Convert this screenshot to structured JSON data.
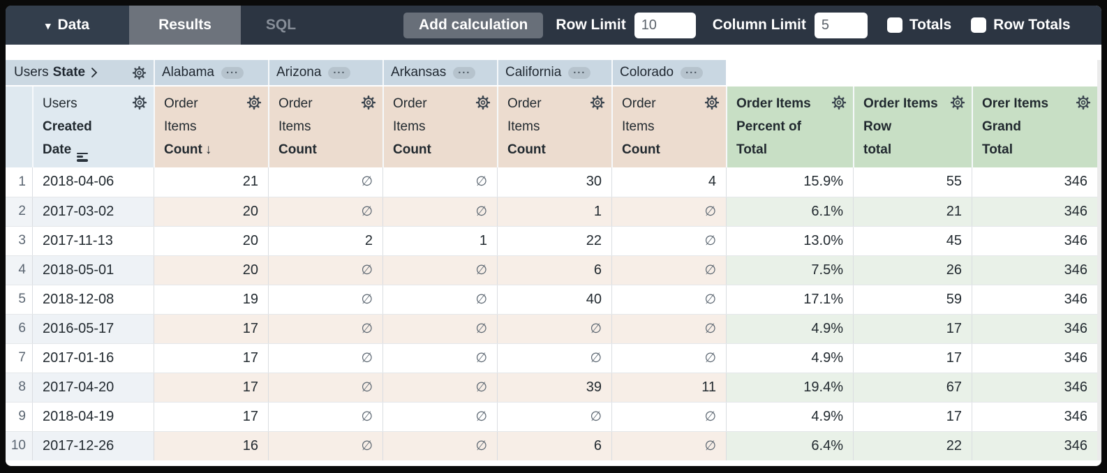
{
  "toolbar": {
    "data_label": "Data",
    "results_tab": "Results",
    "sql_tab": "SQL",
    "add_calculation_label": "Add calculation",
    "row_limit_label": "Row Limit",
    "row_limit_value": "10",
    "column_limit_label": "Column Limit",
    "column_limit_value": "5",
    "totals_label": "Totals",
    "row_totals_label": "Row Totals",
    "totals_checked": false,
    "row_totals_checked": false
  },
  "pivot": {
    "field_normal": "Users",
    "field_bold": "State",
    "states": [
      "Alabama",
      "Arizona",
      "Arkansas",
      "California",
      "Colorado"
    ]
  },
  "table": {
    "columns": [
      {
        "key": "users-created-date",
        "group": "dimension",
        "lines": [
          "Users",
          "Created",
          "Date"
        ],
        "bold_from": 1,
        "icon": "date-granularity-icon",
        "sorted": false
      },
      {
        "key": "alabama-order-items-count",
        "group": "measure",
        "lines": [
          "Order",
          "Items",
          "Count"
        ],
        "bold_from": 2,
        "icon": null,
        "sorted": true
      },
      {
        "key": "arizona-order-items-count",
        "group": "measure",
        "lines": [
          "Order",
          "Items",
          "Count"
        ],
        "bold_from": 2,
        "icon": null,
        "sorted": false
      },
      {
        "key": "arkansas-order-items-count",
        "group": "measure",
        "lines": [
          "Order",
          "Items",
          "Count"
        ],
        "bold_from": 2,
        "icon": null,
        "sorted": false
      },
      {
        "key": "california-order-items-count",
        "group": "measure",
        "lines": [
          "Order",
          "Items",
          "Count"
        ],
        "bold_from": 2,
        "icon": null,
        "sorted": false
      },
      {
        "key": "colorado-order-items-count",
        "group": "measure",
        "lines": [
          "Order",
          "Items",
          "Count"
        ],
        "bold_from": 2,
        "icon": null,
        "sorted": false
      },
      {
        "key": "order-items-percent-of-total",
        "group": "calc",
        "lines": [
          "Order Items",
          "Percent of",
          "Total"
        ],
        "bold_from": 0,
        "icon": null,
        "sorted": false
      },
      {
        "key": "order-items-row-total",
        "group": "calc",
        "lines": [
          "Order Items",
          "Row",
          "total"
        ],
        "bold_from": 0,
        "icon": null,
        "sorted": false
      },
      {
        "key": "orer-items-grand-total",
        "group": "calc",
        "lines": [
          "Orer Items",
          "Grand",
          "Total"
        ],
        "bold_from": 0,
        "icon": null,
        "sorted": false
      }
    ],
    "null_glyph": "∅",
    "sort_arrow_glyph": "↓",
    "rows": [
      {
        "num": "1",
        "cells": [
          "2018-04-06",
          "21",
          "∅",
          "∅",
          "30",
          "4",
          "15.9%",
          "55",
          "346"
        ]
      },
      {
        "num": "2",
        "cells": [
          "2017-03-02",
          "20",
          "∅",
          "∅",
          "1",
          "∅",
          "6.1%",
          "21",
          "346"
        ]
      },
      {
        "num": "3",
        "cells": [
          "2017-11-13",
          "20",
          "2",
          "1",
          "22",
          "∅",
          "13.0%",
          "45",
          "346"
        ]
      },
      {
        "num": "4",
        "cells": [
          "2018-05-01",
          "20",
          "∅",
          "∅",
          "6",
          "∅",
          "7.5%",
          "26",
          "346"
        ]
      },
      {
        "num": "5",
        "cells": [
          "2018-12-08",
          "19",
          "∅",
          "∅",
          "40",
          "∅",
          "17.1%",
          "59",
          "346"
        ]
      },
      {
        "num": "6",
        "cells": [
          "2016-05-17",
          "17",
          "∅",
          "∅",
          "∅",
          "∅",
          "4.9%",
          "17",
          "346"
        ]
      },
      {
        "num": "7",
        "cells": [
          "2017-01-16",
          "17",
          "∅",
          "∅",
          "∅",
          "∅",
          "4.9%",
          "17",
          "346"
        ]
      },
      {
        "num": "8",
        "cells": [
          "2017-04-20",
          "17",
          "∅",
          "∅",
          "39",
          "11",
          "19.4%",
          "67",
          "346"
        ]
      },
      {
        "num": "9",
        "cells": [
          "2018-04-19",
          "17",
          "∅",
          "∅",
          "∅",
          "∅",
          "4.9%",
          "17",
          "346"
        ]
      },
      {
        "num": "10",
        "cells": [
          "2017-12-26",
          "16",
          "∅",
          "∅",
          "6",
          "∅",
          "6.4%",
          "22",
          "346"
        ]
      }
    ]
  },
  "colors": {
    "topbar_bg": "#2c3542",
    "data_block_bg": "#333e4c",
    "active_tab_bg": "#6d737c",
    "button_bg": "#686f79",
    "pivot_header_bg": "#c9d7e2",
    "dimension_header_bg": "#dfe9f0",
    "measure_header_bg": "#ecdccf",
    "calc_header_bg": "#c8dfc5",
    "row_tint_dimension": "#eef2f6",
    "row_tint_measure": "#f7eee7",
    "row_tint_calc": "#e9f1e8"
  }
}
